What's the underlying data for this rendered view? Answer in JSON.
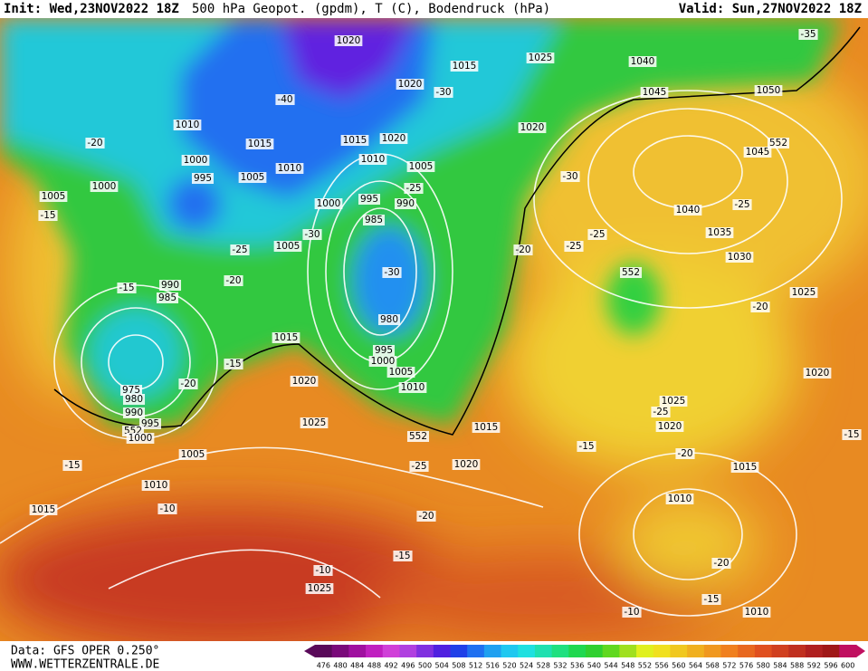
{
  "header": {
    "init": "Init: Wed,23NOV2022 18Z",
    "title": "500 hPa Geopot. (gpdm), T (C), Bodendruck (hPa)",
    "valid": "Valid: Sun,27NOV2022 18Z"
  },
  "footer": {
    "source": "Data: GFS OPER 0.250°",
    "website": "WWW.WETTERZENTRALE.DE"
  },
  "map": {
    "labels": [
      "1020",
      "1015",
      "1025",
      "1040",
      "1045",
      "1050",
      "-35",
      "1020",
      "-30",
      "-40",
      "1010",
      "1015",
      "1015",
      "1020",
      "1020",
      "-20",
      "1000",
      "1010",
      "1010",
      "1005",
      "1045",
      "552",
      "995",
      "1005",
      "1000",
      "-30",
      "-25",
      "995",
      "990",
      "1000",
      "1005",
      "-15",
      "1040",
      "-25",
      "985",
      "-30",
      "1035",
      "-25",
      "-20",
      "-25",
      "1005",
      "-25",
      "1030",
      "552",
      "-30",
      "-15",
      "990",
      "985",
      "-20",
      "1025",
      "-20",
      "980",
      "1015",
      "995",
      "1000",
      "1005",
      "-15",
      "1020",
      "975",
      "980",
      "-20",
      "1010",
      "1020",
      "1025",
      "-25",
      "990",
      "995",
      "1020",
      "552",
      "1000",
      "1025",
      "1015",
      "552",
      "-15",
      "-15",
      "-20",
      "1005",
      "1020",
      "-15",
      "-25",
      "1015",
      "1010",
      "1010",
      "-20",
      "1015",
      "-10",
      "-15",
      "-20",
      "-10",
      "1025",
      "-15",
      "-10",
      "1010"
    ]
  },
  "colorbar": {
    "ticks": [
      476,
      480,
      484,
      488,
      492,
      496,
      500,
      504,
      508,
      512,
      516,
      520,
      524,
      528,
      532,
      536,
      540,
      544,
      548,
      552,
      556,
      560,
      564,
      568,
      572,
      576,
      580,
      584,
      588,
      592,
      596,
      600
    ],
    "colors": [
      "#5a0a5a",
      "#7a0a7a",
      "#a010a0",
      "#c020c0",
      "#d040d8",
      "#b040e0",
      "#8030e0",
      "#5020e0",
      "#2040e8",
      "#2070f0",
      "#20a0f0",
      "#20c8f0",
      "#20e0e0",
      "#20e0b0",
      "#20e080",
      "#20d850",
      "#30d030",
      "#60d820",
      "#a0e020",
      "#e0f020",
      "#f0e020",
      "#f0c820",
      "#f0b020",
      "#f09820",
      "#f08020",
      "#e86820",
      "#e05020",
      "#d04020",
      "#c03020",
      "#b02020",
      "#a01818",
      "#c01060"
    ]
  }
}
